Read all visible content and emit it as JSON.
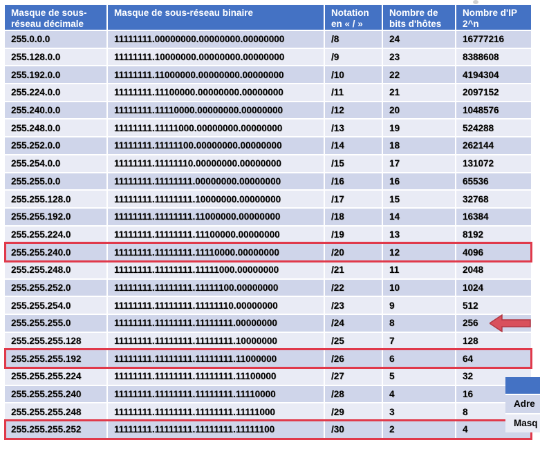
{
  "table": {
    "headers": [
      "Masque de sous-réseau décimale",
      "Masque de sous-réseau binaire",
      "Notation en « / »",
      "Nombre de bits d'hôtes",
      "Nombre d'IP 2^n"
    ],
    "rows": [
      [
        "255.0.0.0",
        "11111111.00000000.00000000.00000000",
        "/8",
        "24",
        "16777216"
      ],
      [
        "255.128.0.0",
        "11111111.10000000.00000000.00000000",
        "/9",
        "23",
        "8388608"
      ],
      [
        "255.192.0.0",
        "11111111.11000000.00000000.00000000",
        "/10",
        "22",
        "4194304"
      ],
      [
        "255.224.0.0",
        "11111111.11100000.00000000.00000000",
        "/11",
        "21",
        "2097152"
      ],
      [
        "255.240.0.0",
        "11111111.11110000.00000000.00000000",
        "/12",
        "20",
        "1048576"
      ],
      [
        "255.248.0.0",
        "11111111.11111000.00000000.00000000",
        "/13",
        "19",
        "524288"
      ],
      [
        "255.252.0.0",
        "11111111.11111100.00000000.00000000",
        "/14",
        "18",
        "262144"
      ],
      [
        "255.254.0.0",
        "11111111.11111110.00000000.00000000",
        "/15",
        "17",
        "131072"
      ],
      [
        "255.255.0.0",
        "11111111.11111111.00000000.00000000",
        "/16",
        "16",
        "65536"
      ],
      [
        "255.255.128.0",
        "11111111.11111111.10000000.00000000",
        "/17",
        "15",
        "32768"
      ],
      [
        "255.255.192.0",
        "11111111.11111111.11000000.00000000",
        "/18",
        "14",
        "16384"
      ],
      [
        "255.255.224.0",
        "11111111.11111111.11100000.00000000",
        "/19",
        "13",
        "8192"
      ],
      [
        "255.255.240.0",
        "11111111.11111111.11110000.00000000",
        "/20",
        "12",
        "4096"
      ],
      [
        "255.255.248.0",
        "11111111.11111111.11111000.00000000",
        "/21",
        "11",
        "2048"
      ],
      [
        "255.255.252.0",
        "11111111.11111111.11111100.00000000",
        "/22",
        "10",
        "1024"
      ],
      [
        "255.255.254.0",
        "11111111.11111111.11111110.00000000",
        "/23",
        "9",
        "512"
      ],
      [
        "255.255.255.0",
        "11111111.11111111.11111111.00000000",
        "/24",
        "8",
        "256"
      ],
      [
        "255.255.255.128",
        "11111111.11111111.11111111.10000000",
        "/25",
        "7",
        "128"
      ],
      [
        "255.255.255.192",
        "11111111.11111111.11111111.11000000",
        "/26",
        "6",
        "64"
      ],
      [
        "255.255.255.224",
        "11111111.11111111.11111111.11100000",
        "/27",
        "5",
        "32"
      ],
      [
        "255.255.255.240",
        "11111111.11111111.11111111.11110000",
        "/28",
        "4",
        "16"
      ],
      [
        "255.255.255.248",
        "11111111.11111111.11111111.11111000",
        "/29",
        "3",
        "8"
      ],
      [
        "255.255.255.252",
        "11111111.11111111.11111111.11111100",
        "/30",
        "2",
        "4"
      ]
    ]
  },
  "highlighted_rows": [
    "/20",
    "/26",
    "/30"
  ],
  "arrow_row": "/24",
  "popup": {
    "row1": "Adre",
    "row2": "Masq"
  },
  "colors": {
    "header": "#4472c4",
    "row_odd": "#cfd5ea",
    "row_even": "#e9ebf5",
    "highlight": "#e0394a"
  }
}
